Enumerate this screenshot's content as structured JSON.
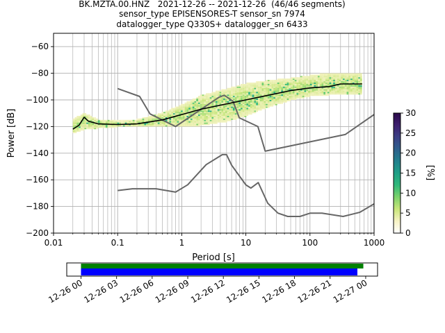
{
  "title": {
    "line1": "BK.MZTA.00.HNZ   2021-12-26 -- 2021-12-26  (46/46 segments)",
    "line2": "sensor_type EPISENSORES-T sensor_sn 7974",
    "line3": "datalogger_type Q330S+ datalogger_sn 6433"
  },
  "chart_data": [
    {
      "type": "heatmap",
      "xlabel": "Period [s]",
      "ylabel": "Power [dB]",
      "xscale": "log",
      "xlim": [
        0.01,
        1000
      ],
      "ylim": [
        -200,
        -50
      ],
      "xticks": [
        {
          "value": 0.01,
          "label": "0.01"
        },
        {
          "value": 0.1,
          "label": "0.1"
        },
        {
          "value": 1,
          "label": "1"
        },
        {
          "value": 10,
          "label": "10"
        },
        {
          "value": 100,
          "label": "100"
        },
        {
          "value": 1000,
          "label": "1000"
        }
      ],
      "yticks": [
        -60,
        -80,
        -100,
        -120,
        -140,
        -160,
        -180,
        -200
      ],
      "grid": true,
      "colorbar": {
        "label": "[%]",
        "range": [
          0,
          30
        ],
        "ticks": [
          0,
          5,
          10,
          15,
          20,
          25,
          30
        ],
        "colormap": [
          "#ffffff",
          "#f7f3c4",
          "#c9e67a",
          "#7cd26b",
          "#2fb87a",
          "#1e9f86",
          "#21808d",
          "#2d5f8c",
          "#3b3f85",
          "#3d1f6e",
          "#2b0a4a"
        ]
      },
      "density_band": {
        "period": [
          0.02,
          0.03,
          0.05,
          0.1,
          0.2,
          0.5,
          1,
          2,
          5,
          10,
          20,
          50,
          100,
          200,
          500,
          650
        ],
        "upper": [
          -115,
          -110,
          -115,
          -116,
          -115,
          -110,
          -104,
          -97,
          -92,
          -88,
          -86,
          -84,
          -82,
          -80,
          -80,
          -80
        ],
        "lower": [
          -125,
          -122,
          -121,
          -120,
          -120,
          -120,
          -120,
          -119,
          -116,
          -112,
          -106,
          -100,
          -97,
          -96,
          -96,
          -96
        ]
      },
      "series": [
        {
          "name": "mean",
          "color": "#000000",
          "x": [
            0.02,
            0.025,
            0.03,
            0.035,
            0.05,
            0.1,
            0.2,
            0.5,
            1,
            2,
            5,
            10,
            20,
            50,
            100,
            200,
            300,
            650
          ],
          "y": [
            -122,
            -119,
            -113,
            -116,
            -118,
            -118.5,
            -118,
            -115,
            -111,
            -107,
            -103,
            -100,
            -97,
            -93,
            -91,
            -90,
            -88,
            -88
          ]
        },
        {
          "name": "high noise model",
          "color": "#666666",
          "x": [
            0.1,
            0.22,
            0.32,
            0.8,
            3.8,
            4.6,
            6.3,
            7.9,
            15.4,
            20,
            354.8,
            1000
          ],
          "y": [
            -91.5,
            -97.4,
            -110.5,
            -120,
            -98,
            -96.5,
            -101,
            -113.5,
            -120,
            -138.5,
            -126,
            -111
          ]
        },
        {
          "name": "low noise model",
          "color": "#666666",
          "x": [
            0.1,
            0.17,
            0.4,
            0.8,
            1.24,
            2.4,
            4.3,
            5,
            6,
            10,
            12,
            15.6,
            21.9,
            31.6,
            45,
            70,
            101,
            154,
            328,
            600,
            1000
          ],
          "y": [
            -168,
            -166.7,
            -166.7,
            -169.2,
            -163.7,
            -148.6,
            -141.1,
            -141.1,
            -149,
            -163.8,
            -166.2,
            -162.1,
            -177.5,
            -185,
            -187.5,
            -187.5,
            -185,
            -185,
            -187.5,
            -184.4,
            -178
          ]
        }
      ]
    },
    {
      "type": "timeline",
      "xticks": [
        "12-26 00",
        "12-26 03",
        "12-26 06",
        "12-26 09",
        "12-26 12",
        "12-26 15",
        "12-26 18",
        "12-26 21",
        "12-27 00"
      ],
      "xlim_hours": [
        -1.2,
        25
      ],
      "bars": [
        {
          "name": "data available",
          "color": "#008000",
          "start_hours": 0,
          "end_hours": 23.8
        },
        {
          "name": "psd segments",
          "color": "#0000ff",
          "start_hours": 0,
          "end_hours": 23.3
        }
      ]
    }
  ]
}
